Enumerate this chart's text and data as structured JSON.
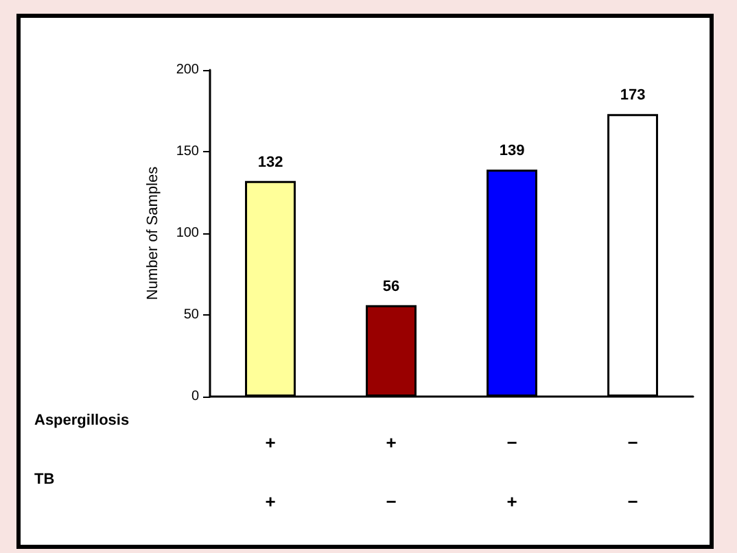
{
  "chart_data": {
    "type": "bar",
    "ylabel": "Number of Samples",
    "categories": [
      "+\n+",
      "+\n−",
      "−\n+",
      "−\n−"
    ],
    "values": [
      132,
      56,
      139,
      173
    ],
    "colors": [
      "#ffff99",
      "#990000",
      "#0000ff",
      "#ffffff"
    ],
    "ylim": [
      0,
      200
    ],
    "yticks": [
      0,
      50,
      100,
      150,
      200
    ],
    "data_labels": true,
    "grid": false,
    "annotations": [
      "Aspergillosis",
      "TB"
    ]
  }
}
